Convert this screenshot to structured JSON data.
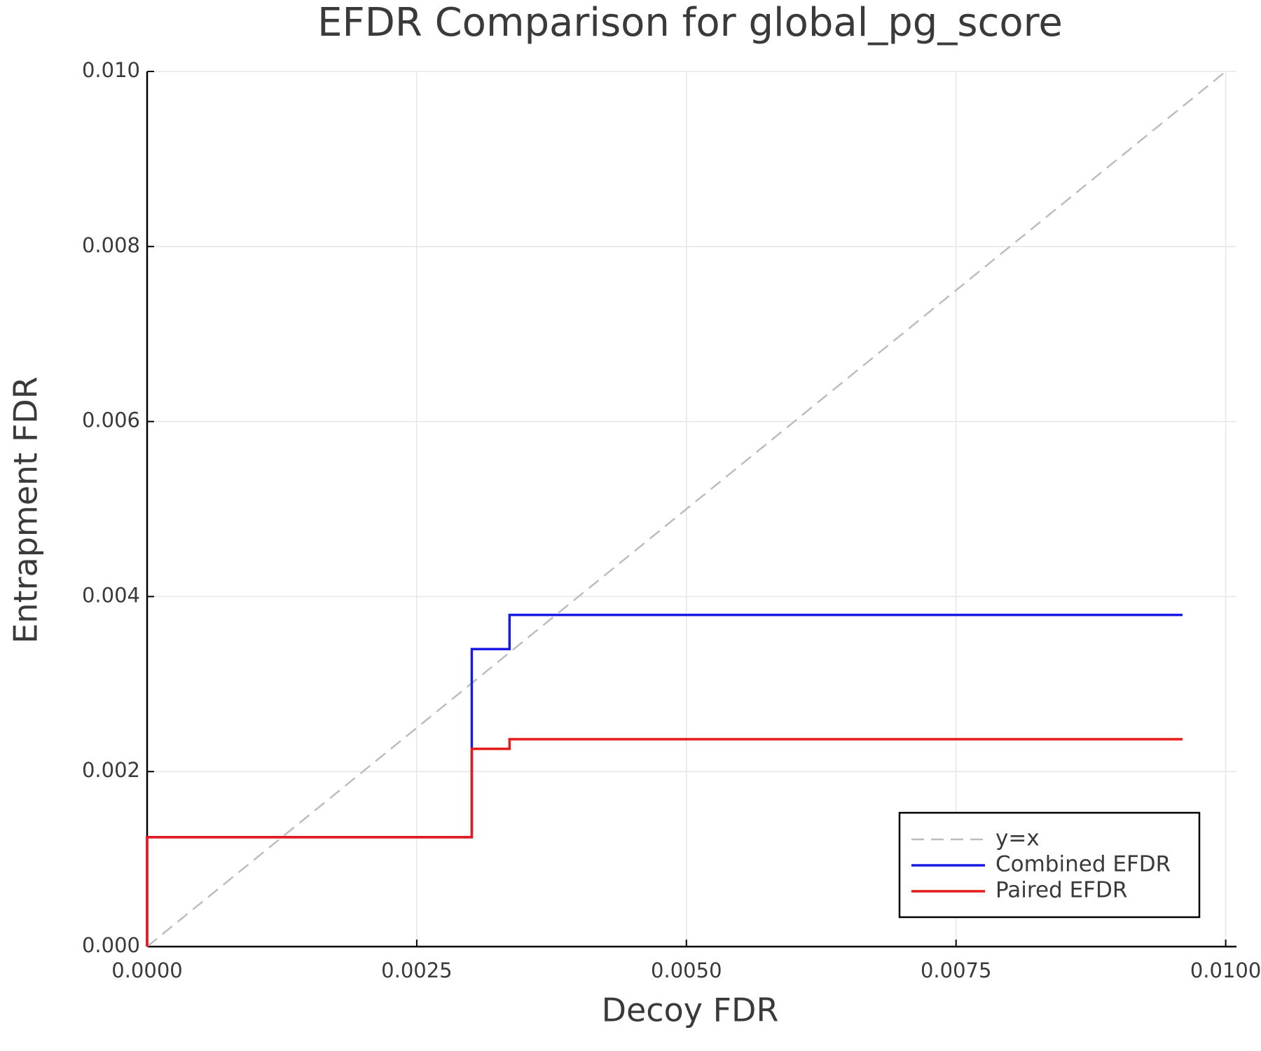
{
  "chart_data": {
    "type": "line",
    "title": "EFDR Comparison for global_pg_score",
    "x_label": "Decoy FDR",
    "y_label": "Entrapment FDR",
    "xlim": [
      0,
      0.0101
    ],
    "ylim": [
      0,
      0.01
    ],
    "xticks": [
      {
        "value": 0,
        "label": "0.0000"
      },
      {
        "value": 0.0025,
        "label": "0.0025"
      },
      {
        "value": 0.005,
        "label": "0.0050"
      },
      {
        "value": 0.0075,
        "label": "0.0075"
      },
      {
        "value": 0.01,
        "label": "0.0100"
      }
    ],
    "yticks": [
      {
        "value": 0,
        "label": "0.000"
      },
      {
        "value": 0.002,
        "label": "0.002"
      },
      {
        "value": 0.004,
        "label": "0.004"
      },
      {
        "value": 0.006,
        "label": "0.006"
      },
      {
        "value": 0.008,
        "label": "0.008"
      },
      {
        "value": 0.01,
        "label": "0.010"
      }
    ],
    "grid": true,
    "legend": "bottom right",
    "series": [
      {
        "name": "y=x",
        "color": "#bdbdbd",
        "dash": true,
        "x": [
          0,
          0.01
        ],
        "values": [
          0,
          0.01
        ]
      },
      {
        "name": "Combined EFDR",
        "color": "#1a1ae6",
        "dash": false,
        "x": [
          0,
          0,
          0.00301,
          0.00301,
          0.00336,
          0.00336,
          0.0096
        ],
        "values": [
          0,
          0.00125,
          0.00125,
          0.0034,
          0.0034,
          0.00379,
          0.00379
        ]
      },
      {
        "name": "Paired EFDR",
        "color": "#e61a1a",
        "dash": false,
        "x": [
          0,
          0,
          0.00301,
          0.00301,
          0.00336,
          0.00336,
          0.0096
        ],
        "values": [
          0,
          0.00125,
          0.00125,
          0.00226,
          0.00226,
          0.00237,
          0.00237
        ]
      }
    ]
  }
}
